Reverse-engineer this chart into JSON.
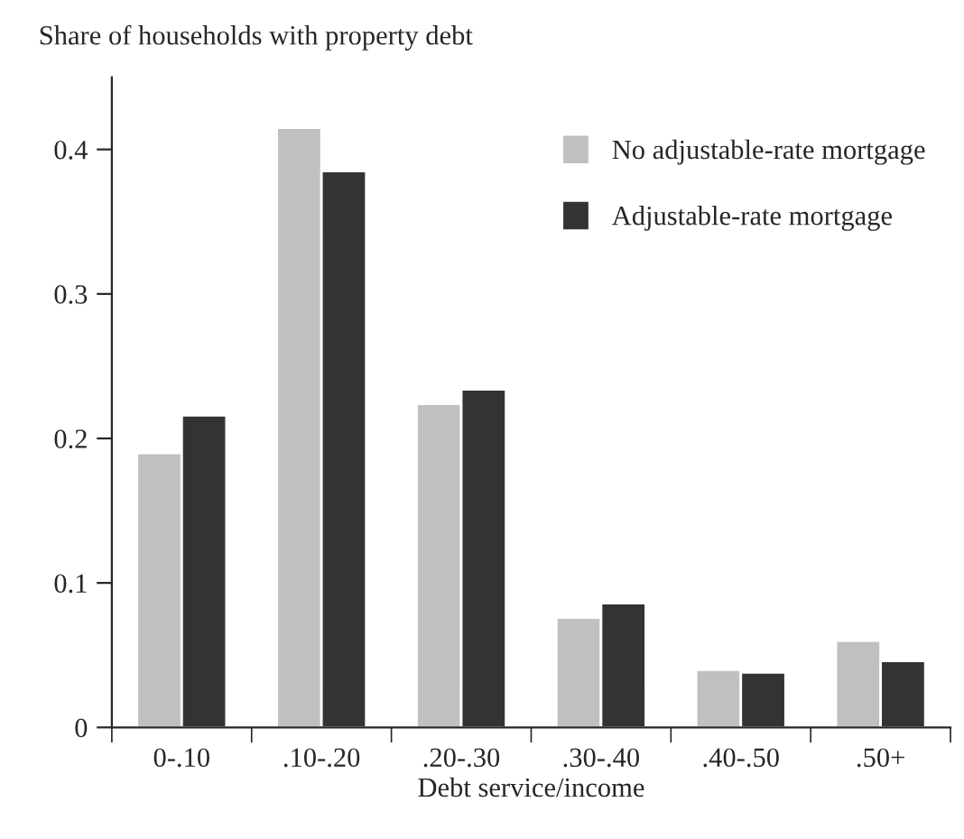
{
  "chart_data": {
    "type": "bar",
    "title": "Share of households with property debt",
    "xlabel": "Debt service/income",
    "categories": [
      "0-.10",
      ".10-.20",
      ".20-.30",
      ".30-.40",
      ".40-.50",
      ".50+"
    ],
    "series": [
      {
        "name": "No adjustable-rate mortgage",
        "color": "#c0c0c0",
        "values": [
          0.19,
          0.415,
          0.224,
          0.076,
          0.04,
          0.06
        ]
      },
      {
        "name": "Adjustable-rate mortgage",
        "color": "#333333",
        "values": [
          0.216,
          0.385,
          0.234,
          0.086,
          0.038,
          0.046
        ]
      }
    ],
    "ylim": [
      0,
      0.45
    ],
    "yticks": [
      {
        "value": 0,
        "label": "0"
      },
      0.1,
      0.2,
      0.3,
      0.4
    ],
    "grid": false,
    "legend": "top right"
  }
}
